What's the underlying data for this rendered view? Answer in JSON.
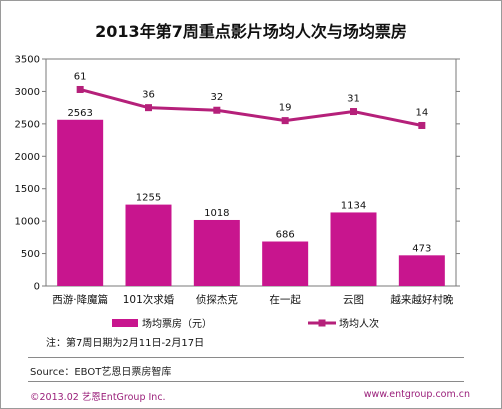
{
  "chart_data": {
    "type": "bar+line",
    "title": "2013年第7周重点影片场均人次与场均票房",
    "categories": [
      "西游·降魔篇",
      "101次求婚",
      "侦探杰克",
      "在一起",
      "云图",
      "越来越好村晚"
    ],
    "series": [
      {
        "name": "场均票房（元）",
        "type": "bar",
        "values": [
          2563,
          1255,
          1018,
          686,
          1134,
          473
        ],
        "color": "#c8158e"
      },
      {
        "name": "场均人次",
        "type": "line",
        "values": [
          61,
          36,
          32,
          19,
          31,
          14
        ],
        "color": "#b5207a"
      }
    ],
    "ylim": [
      0,
      3500
    ],
    "yticks": [
      0,
      500,
      1000,
      1500,
      2000,
      2500,
      3000,
      3500
    ],
    "line_value_positions": [
      3030,
      2750,
      2710,
      2550,
      2690,
      2475
    ],
    "grid": false,
    "legend": "bottom"
  },
  "note": "注：第7周日期为2月11日-2月17日",
  "source": "Source：EBOT艺恩日票房智库",
  "footer": {
    "left": "©2013.02 艺恩EntGroup Inc.",
    "right": "www.entgroup.com.cn"
  }
}
